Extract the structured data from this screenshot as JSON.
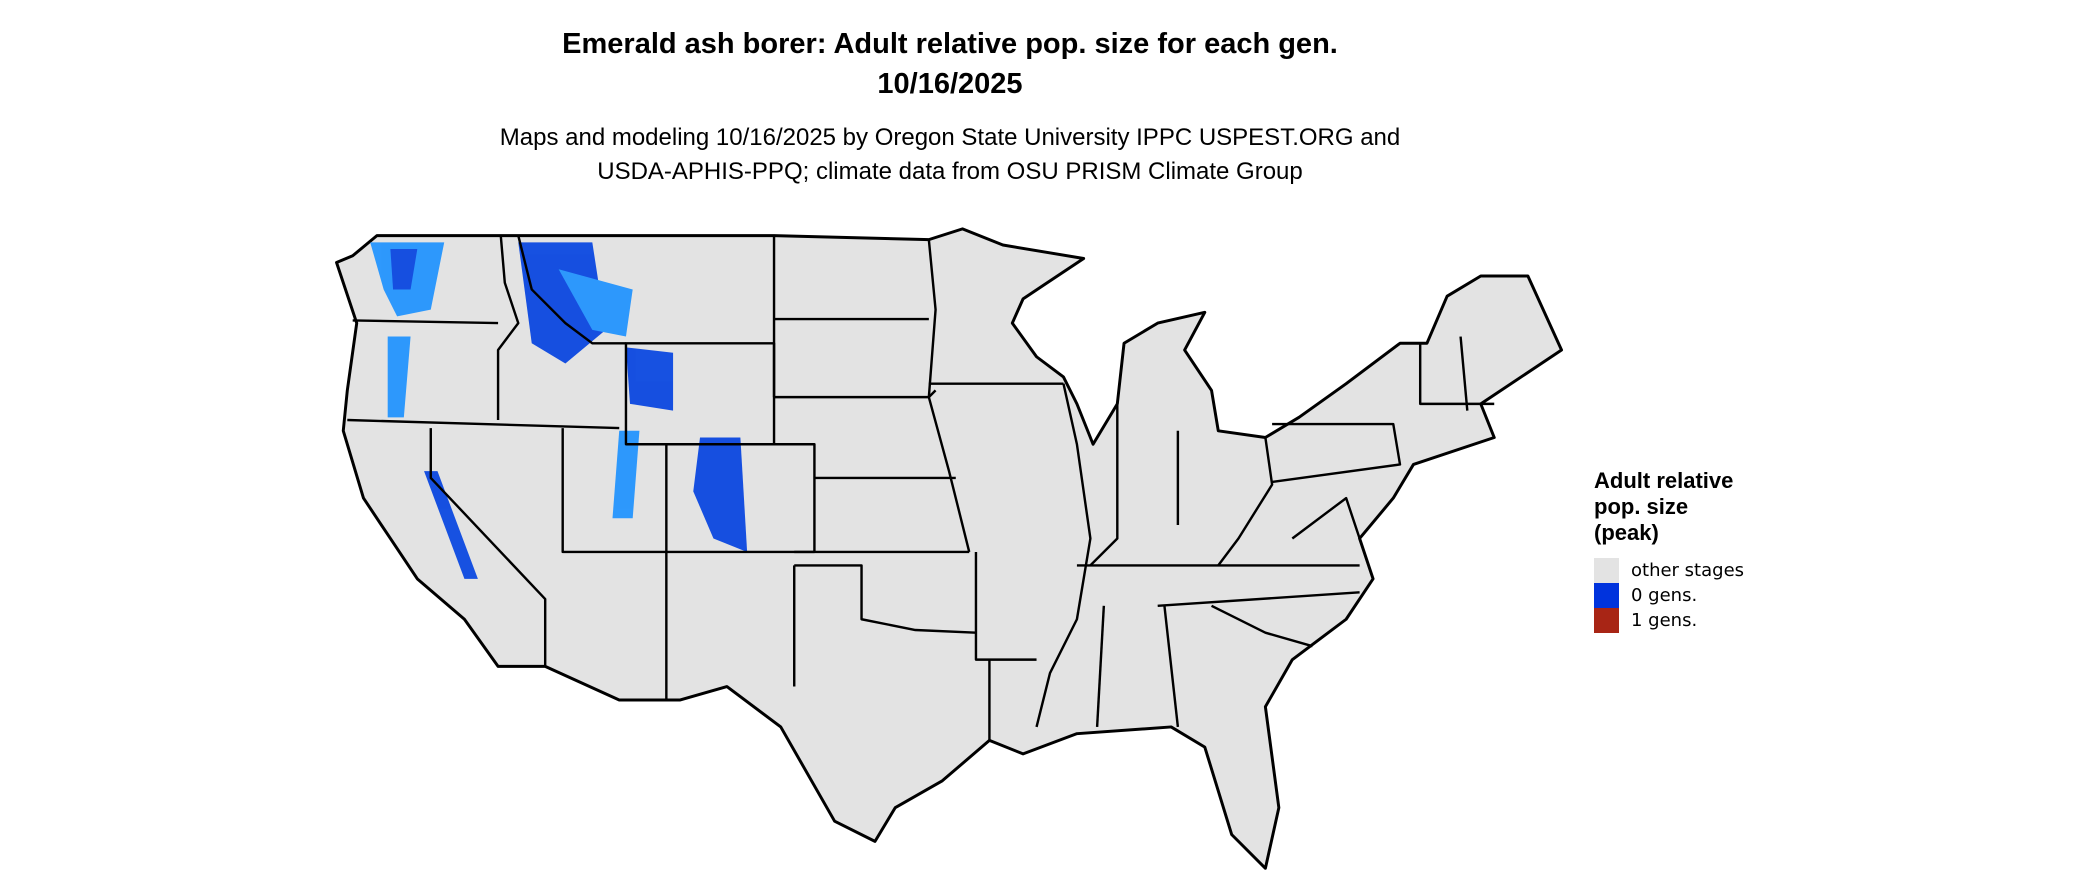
{
  "title": {
    "line1": "Emerald ash borer: Adult relative pop. size for each gen.",
    "line2": "10/16/2025"
  },
  "subtitle": {
    "line1": "Maps and modeling 10/16/2025 by Oregon State University IPPC USPEST.ORG and",
    "line2": "USDA-APHIS-PPQ; climate data from OSU PRISM Climate Group"
  },
  "legend": {
    "title_lines": [
      "Adult relative",
      "pop. size",
      "(peak)"
    ],
    "items": [
      {
        "label": "other stages",
        "color": "#e3e3e3"
      },
      {
        "label": "0 gens.",
        "color": "#0033dd"
      },
      {
        "label": "1 gens.",
        "color": "#a82515"
      }
    ]
  },
  "map": {
    "region": "Contiguous United States",
    "fill_color": "#e3e3e3",
    "border_color": "#000000",
    "highlight_light_color": "#1a90ff"
  }
}
